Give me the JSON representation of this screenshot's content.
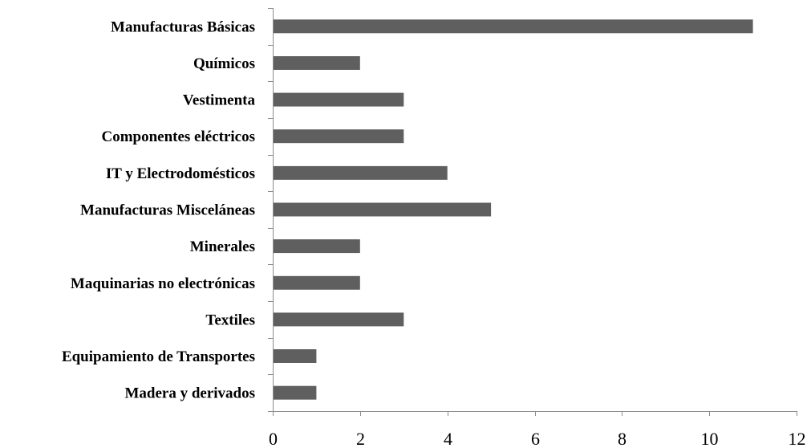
{
  "chart_data": {
    "type": "bar",
    "orientation": "horizontal",
    "title": "",
    "xlabel": "",
    "ylabel": "",
    "categories": [
      "Manufacturas Básicas",
      "Químicos",
      "Vestimenta",
      "Componentes eléctricos",
      "IT y Electrodomésticos",
      "Manufacturas Misceláneas",
      "Minerales",
      "Maquinarias no electrónicas",
      "Textiles",
      "Equipamiento de Transportes",
      "Madera y derivados"
    ],
    "values": [
      11,
      2,
      3,
      3,
      4,
      5,
      2,
      2,
      3,
      1,
      1
    ],
    "xlim": [
      0,
      12
    ],
    "xticks": [
      "0",
      "2",
      "4",
      "6",
      "8",
      "10",
      "12"
    ],
    "grid": false,
    "legend": "none",
    "bar_color": "#5f5f5f",
    "axis_color": "#8c8c8c"
  }
}
